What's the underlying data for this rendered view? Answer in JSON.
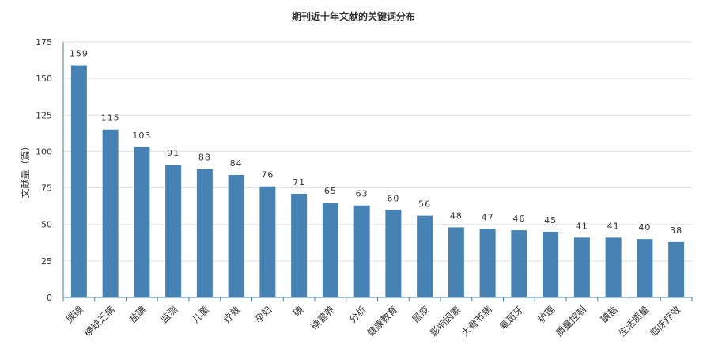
{
  "chart_data": {
    "type": "bar",
    "title": "期刊近十年文献的关键词分布",
    "xlabel": "",
    "ylabel": "文献量（篇）",
    "ylim": [
      0,
      175
    ],
    "yticks": [
      0,
      25,
      50,
      75,
      100,
      125,
      150,
      175
    ],
    "grid": true,
    "legend": "none",
    "bar_color": "#4682b4",
    "categories": [
      "尿碘",
      "碘缺乏病",
      "盐碘",
      "监测",
      "儿童",
      "疗效",
      "孕妇",
      "碘",
      "碘营养",
      "分析",
      "健康教育",
      "鼠疫",
      "影响因素",
      "大骨节病",
      "氟斑牙",
      "护理",
      "质量控制",
      "碘盐",
      "生活质量",
      "临床疗效"
    ],
    "values": [
      159,
      115,
      103,
      91,
      88,
      84,
      76,
      71,
      65,
      63,
      60,
      56,
      48,
      47,
      46,
      45,
      41,
      41,
      40,
      38
    ]
  }
}
